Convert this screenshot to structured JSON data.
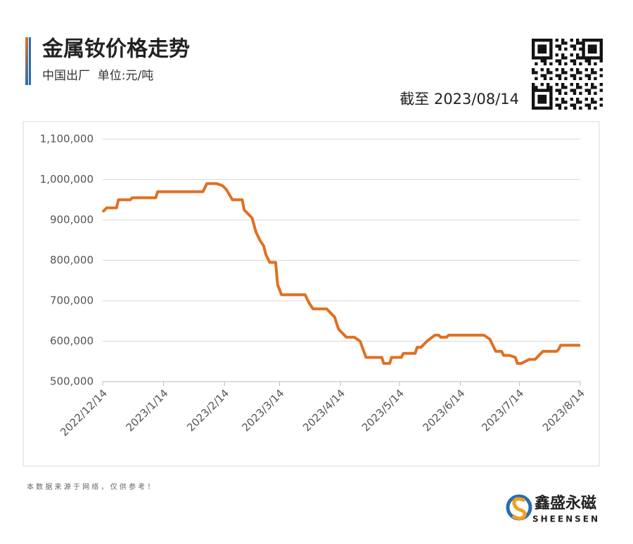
{
  "header": {
    "title": "金属钕价格走势",
    "subtitle": "中国出厂  单位:元/吨",
    "as_of": "截至 2023/08/14"
  },
  "chart_data": {
    "type": "line",
    "color": "#e07020",
    "grid": true,
    "x": [
      "2022-12-14",
      "2022-12-16",
      "2022-12-21",
      "2022-12-22",
      "2022-12-28",
      "2022-12-29",
      "2023-01-10",
      "2023-01-11",
      "2023-02-03",
      "2023-02-05",
      "2023-02-10",
      "2023-02-13",
      "2023-02-15",
      "2023-02-18",
      "2023-02-23",
      "2023-02-24",
      "2023-02-26",
      "2023-02-28",
      "2023-03-02",
      "2023-03-04",
      "2023-03-06",
      "2023-03-07",
      "2023-03-09",
      "2023-03-12",
      "2023-03-13",
      "2023-03-15",
      "2023-03-27",
      "2023-03-29",
      "2023-03-31",
      "2023-04-07",
      "2023-04-09",
      "2023-04-11",
      "2023-04-13",
      "2023-04-17",
      "2023-04-21",
      "2023-04-24",
      "2023-04-27",
      "2023-05-05",
      "2023-05-06",
      "2023-05-09",
      "2023-05-10",
      "2023-05-15",
      "2023-05-16",
      "2023-05-22",
      "2023-05-23",
      "2023-05-25",
      "2023-05-28",
      "2023-06-01",
      "2023-06-03",
      "2023-06-04",
      "2023-06-07",
      "2023-06-08",
      "2023-06-26",
      "2023-06-29",
      "2023-07-02",
      "2023-07-05",
      "2023-07-06",
      "2023-07-09",
      "2023-07-12",
      "2023-07-13",
      "2023-07-15",
      "2023-07-17",
      "2023-07-19",
      "2023-07-22",
      "2023-07-26",
      "2023-08-02",
      "2023-08-03",
      "2023-08-04",
      "2023-08-14"
    ],
    "values": [
      920000,
      930000,
      930000,
      950000,
      950000,
      955000,
      955000,
      970000,
      970000,
      990000,
      990000,
      985000,
      975000,
      950000,
      950000,
      925000,
      915000,
      905000,
      870000,
      850000,
      835000,
      815000,
      795000,
      795000,
      740000,
      715000,
      715000,
      695000,
      680000,
      680000,
      670000,
      660000,
      630000,
      610000,
      610000,
      600000,
      560000,
      560000,
      545000,
      545000,
      560000,
      560000,
      570000,
      570000,
      585000,
      585000,
      600000,
      615000,
      615000,
      610000,
      610000,
      615000,
      615000,
      605000,
      575000,
      575000,
      565000,
      565000,
      560000,
      545000,
      545000,
      550000,
      555000,
      555000,
      575000,
      575000,
      580000,
      590000,
      590000
    ],
    "xlim": [
      "2022-12-14",
      "2023-08-14"
    ],
    "xticks": [
      {
        "value": "2022-12-14",
        "label": "2022/12/14"
      },
      {
        "value": "2023-01-14",
        "label": "2023/1/14"
      },
      {
        "value": "2023-02-14",
        "label": "2023/2/14"
      },
      {
        "value": "2023-03-14",
        "label": "2023/3/14"
      },
      {
        "value": "2023-04-14",
        "label": "2023/4/14"
      },
      {
        "value": "2023-05-14",
        "label": "2023/5/14"
      },
      {
        "value": "2023-06-14",
        "label": "2023/6/14"
      },
      {
        "value": "2023-07-14",
        "label": "2023/7/14"
      },
      {
        "value": "2023-08-14",
        "label": "2023/8/14"
      }
    ],
    "ylim": [
      500000,
      1100000
    ],
    "yticks": [
      {
        "value": 500000,
        "label": "500,000"
      },
      {
        "value": 600000,
        "label": "600,000"
      },
      {
        "value": 700000,
        "label": "700,000"
      },
      {
        "value": 800000,
        "label": "800,000"
      },
      {
        "value": 900000,
        "label": "900,000"
      },
      {
        "value": 1000000,
        "label": "1,000,000"
      },
      {
        "value": 1100000,
        "label": "1,100,000"
      }
    ]
  },
  "footer": {
    "note": "本 数 据 来 源 于 网 络 ， 仅 供 参 考 ！",
    "brand": "鑫盛永磁",
    "brand_en": "SHEENSEN"
  }
}
